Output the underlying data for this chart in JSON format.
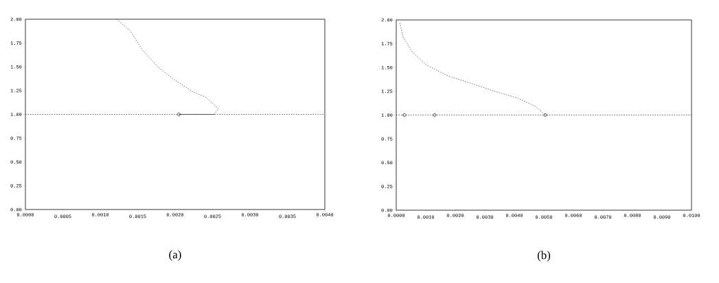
{
  "chart_data": [
    {
      "type": "line",
      "annotations": [
        "(a)"
      ],
      "xlim": [
        0,
        0.004
      ],
      "ylim": [
        0,
        2
      ],
      "xticks": [
        {
          "value": 0,
          "label": "0.0000"
        },
        {
          "value": 0.0005,
          "label": "0.0005"
        },
        {
          "value": 0.001,
          "label": "0.0010"
        },
        {
          "value": 0.0015,
          "label": "0.0015"
        },
        {
          "value": 0.002,
          "label": "0.0020"
        },
        {
          "value": 0.0025,
          "label": "0.0025"
        },
        {
          "value": 0.003,
          "label": "0.0030"
        },
        {
          "value": 0.0035,
          "label": "0.0035"
        },
        {
          "value": 0.004,
          "label": "0.0040"
        }
      ],
      "yticks": [
        {
          "value": 0,
          "label": "0.00"
        },
        {
          "value": 0.25,
          "label": "0.25"
        },
        {
          "value": 0.5,
          "label": "0.50"
        },
        {
          "value": 0.75,
          "label": "0.75"
        },
        {
          "value": 1,
          "label": "1.00"
        },
        {
          "value": 1.25,
          "label": "1.25"
        },
        {
          "value": 1.5,
          "label": "1.50"
        },
        {
          "value": 1.75,
          "label": "1.75"
        },
        {
          "value": 2,
          "label": "2.00"
        }
      ],
      "series": [
        {
          "color": "#333333",
          "line_style": "dotted",
          "x": [
            0,
            0.004
          ],
          "values": [
            1,
            1
          ]
        },
        {
          "color": "#444444",
          "line_style": "dotted",
          "x": [
            0.00122,
            0.0014,
            0.00156,
            0.00177,
            0.00198,
            0.00223,
            0.00241,
            0.00258,
            0.00252
          ],
          "values": [
            2.0,
            1.88,
            1.68,
            1.5,
            1.37,
            1.24,
            1.18,
            1.06,
            1.0
          ]
        },
        {
          "color": "#333333",
          "line_style": "solid",
          "x": [
            0.00205,
            0.00252
          ],
          "values": [
            1,
            1
          ]
        },
        {
          "type": "scatter",
          "color": "#333333",
          "marker": "circle",
          "x": [
            0.00205
          ],
          "values": [
            1
          ]
        }
      ]
    },
    {
      "type": "line",
      "annotations": [
        "(b)"
      ],
      "xlim": [
        0,
        0.01
      ],
      "ylim": [
        0,
        2
      ],
      "xticks": [
        {
          "value": 0,
          "label": "0.0000"
        },
        {
          "value": 0.001,
          "label": "0.0010"
        },
        {
          "value": 0.002,
          "label": "0.0020"
        },
        {
          "value": 0.003,
          "label": "0.0030"
        },
        {
          "value": 0.004,
          "label": "0.0040"
        },
        {
          "value": 0.005,
          "label": "0.0050"
        },
        {
          "value": 0.006,
          "label": "0.0060"
        },
        {
          "value": 0.007,
          "label": "0.0070"
        },
        {
          "value": 0.008,
          "label": "0.0080"
        },
        {
          "value": 0.009,
          "label": "0.0090"
        },
        {
          "value": 0.01,
          "label": "0.0100"
        }
      ],
      "yticks": [
        {
          "value": 0,
          "label": "0.00"
        },
        {
          "value": 0.25,
          "label": "0.25"
        },
        {
          "value": 0.5,
          "label": "0.50"
        },
        {
          "value": 0.75,
          "label": "0.75"
        },
        {
          "value": 1,
          "label": "1.00"
        },
        {
          "value": 1.25,
          "label": "1.25"
        },
        {
          "value": 1.5,
          "label": "1.50"
        },
        {
          "value": 1.75,
          "label": "1.75"
        },
        {
          "value": 2,
          "label": "2.00"
        }
      ],
      "series": [
        {
          "color": "#333333",
          "line_style": "dotted",
          "x": [
            0,
            0.01
          ],
          "values": [
            1,
            1
          ]
        },
        {
          "color": "#444444",
          "line_style": "dotted",
          "x": [
            0.00012,
            0.00023,
            0.00053,
            0.001,
            0.00177,
            0.00256,
            0.00333,
            0.0041,
            0.00472,
            0.00505
          ],
          "values": [
            1.97,
            1.82,
            1.67,
            1.53,
            1.41,
            1.33,
            1.25,
            1.18,
            1.09,
            1.0
          ]
        },
        {
          "type": "scatter",
          "color": "#333333",
          "marker": "circle",
          "x": [
            0.00028,
            0.0013,
            0.00505
          ],
          "values": [
            1,
            1,
            1
          ]
        }
      ]
    }
  ]
}
